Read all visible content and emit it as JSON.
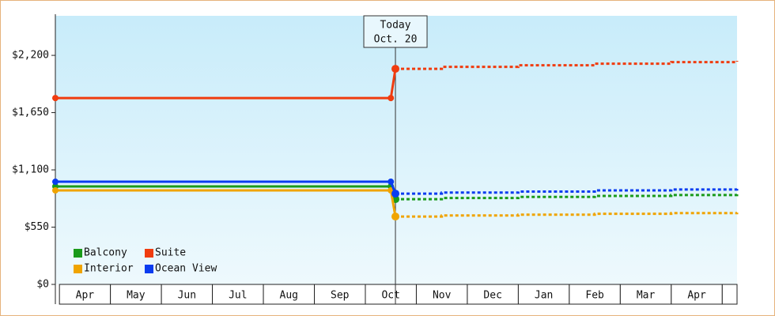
{
  "chart_data": {
    "type": "line",
    "categories": [
      "Apr",
      "May",
      "Jun",
      "Jul",
      "Aug",
      "Sep",
      "Oct",
      "Nov",
      "Dec",
      "Jan",
      "Feb",
      "Mar",
      "Apr"
    ],
    "xlim": [
      -0.08,
      13.29
    ],
    "ylim": [
      0,
      2580
    ],
    "yticks": [
      {
        "value": 0,
        "label": "$0"
      },
      {
        "value": 550,
        "label": "$550"
      },
      {
        "value": 1100,
        "label": "$1,100"
      },
      {
        "value": 1650,
        "label": "$1,650"
      },
      {
        "value": 2200,
        "label": "$2,200"
      }
    ],
    "x": [
      -0.08,
      6.5,
      6.59
    ],
    "forecast_x": [
      6.59,
      7.5,
      9,
      10.5,
      12,
      13.29
    ],
    "annotation": {
      "x": 6.59,
      "lines": [
        "Today",
        "Oct. 20"
      ]
    },
    "legend": "lower left",
    "series": [
      {
        "name": "Balcony",
        "color": "#1a9a1a",
        "values": [
          941,
          941,
          819
        ],
        "forecast_values": [
          819,
          830,
          840,
          850,
          858,
          865
        ]
      },
      {
        "name": "Suite",
        "color": "#f03c0f",
        "values": [
          1790,
          1790,
          2071
        ],
        "forecast_values": [
          2071,
          2090,
          2105,
          2120,
          2135,
          2147
        ]
      },
      {
        "name": "Interior",
        "color": "#f0a400",
        "values": [
          903,
          903,
          652
        ],
        "forecast_values": [
          652,
          662,
          670,
          678,
          685,
          690
        ]
      },
      {
        "name": "Ocean View",
        "color": "#0a3cf0",
        "values": [
          986,
          986,
          872
        ],
        "forecast_values": [
          872,
          882,
          892,
          903,
          912,
          918
        ]
      }
    ]
  }
}
